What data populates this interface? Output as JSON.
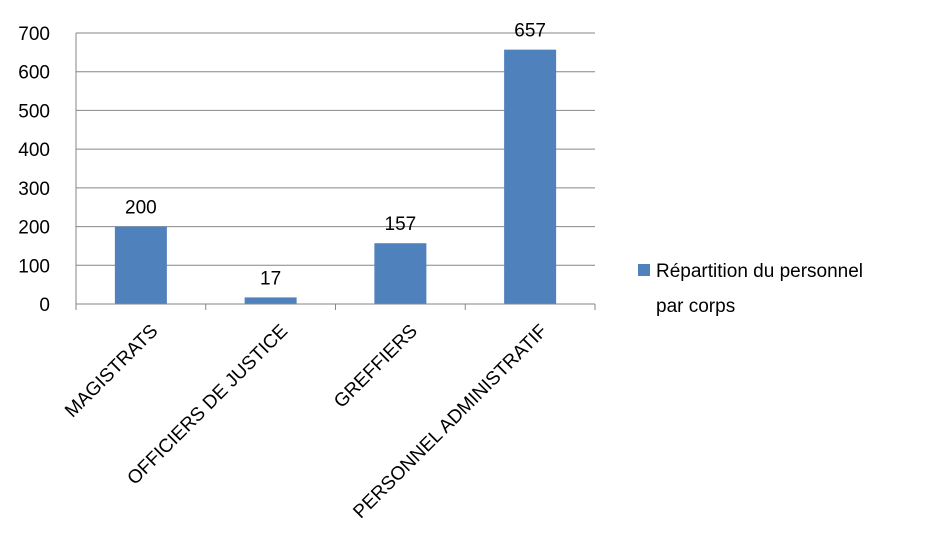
{
  "chart_data": {
    "type": "bar",
    "categories": [
      "MAGISTRATS",
      "OFFICIERS DE JUSTICE",
      "GREFFIERS",
      "PERSONNEL ADMINISTRATIF"
    ],
    "series": [
      {
        "name": "Répartition du personnel par corps",
        "values": [
          200,
          17,
          157,
          657
        ],
        "color": "#4F81BD"
      }
    ],
    "data_labels": [
      "200",
      "17",
      "157",
      "657"
    ],
    "ylim": [
      0,
      700
    ],
    "yticks": [
      0,
      100,
      200,
      300,
      400,
      500,
      600,
      700
    ],
    "grid": true,
    "legend_position": "right",
    "legend_lines": [
      "Répartition du personnel",
      "par corps"
    ],
    "title": "",
    "xlabel": "",
    "ylabel": ""
  },
  "colors": {
    "bar": "#4F81BD",
    "grid": "#868686",
    "axis": "#868686",
    "background": "#FFFFFF"
  }
}
